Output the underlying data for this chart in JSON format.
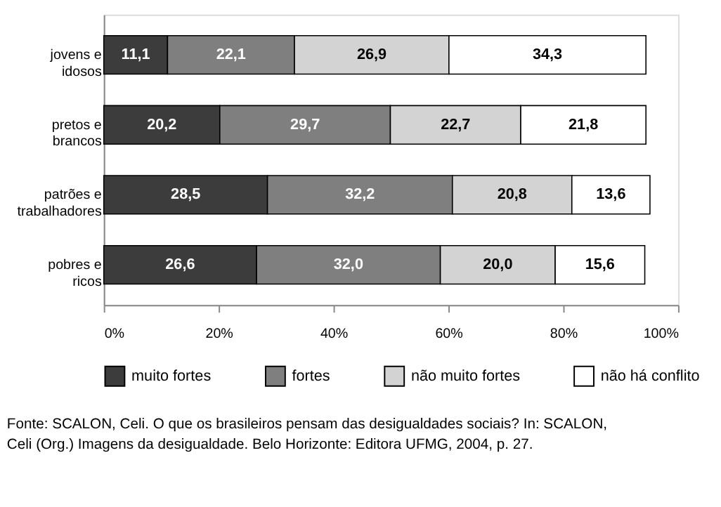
{
  "chart_data": {
    "type": "bar",
    "orientation": "horizontal",
    "stacked": true,
    "categories": [
      "jovens e idosos",
      "pretos e brancos",
      "patrões e trabalhadores",
      "pobres e ricos"
    ],
    "series": [
      {
        "name": "muito fortes",
        "color": "#3c3c3c",
        "values": [
          11.1,
          20.2,
          28.5,
          26.6
        ],
        "value_labels": [
          "11,1",
          "20,2",
          "28,5",
          "26,6"
        ]
      },
      {
        "name": "fortes",
        "color": "#7f7f7f",
        "values": [
          22.1,
          29.7,
          32.2,
          32.0
        ],
        "value_labels": [
          "22,1",
          "29,7",
          "32,2",
          "32,0"
        ]
      },
      {
        "name": "não muito fortes",
        "color": "#d3d3d3",
        "values": [
          26.9,
          22.7,
          20.8,
          20.0
        ],
        "value_labels": [
          "26,9",
          "22,7",
          "20,8",
          "20,0"
        ]
      },
      {
        "name": "não há conflito",
        "color": "#ffffff",
        "values": [
          34.3,
          21.8,
          13.6,
          15.6
        ],
        "value_labels": [
          "34,3",
          "21,8",
          "13,6",
          "15,6"
        ]
      }
    ],
    "xlim": [
      0,
      100
    ],
    "xticks": [
      {
        "value": 0,
        "label": "0%"
      },
      {
        "value": 20,
        "label": "20%"
      },
      {
        "value": 40,
        "label": "40%"
      },
      {
        "value": 60,
        "label": "60%"
      },
      {
        "value": 80,
        "label": "80%"
      },
      {
        "value": 100,
        "label": "100%"
      }
    ],
    "grid": false,
    "legend": "bottom",
    "annotations": [
      "Fonte: SCALON, Celi. O que os brasileiros pensam das desigualdades sociais? In: SCALON,",
      "Celi (Org.) Imagens da desigualdade. Belo Horizonte: Editora UFMG, 2004, p. 27."
    ]
  }
}
